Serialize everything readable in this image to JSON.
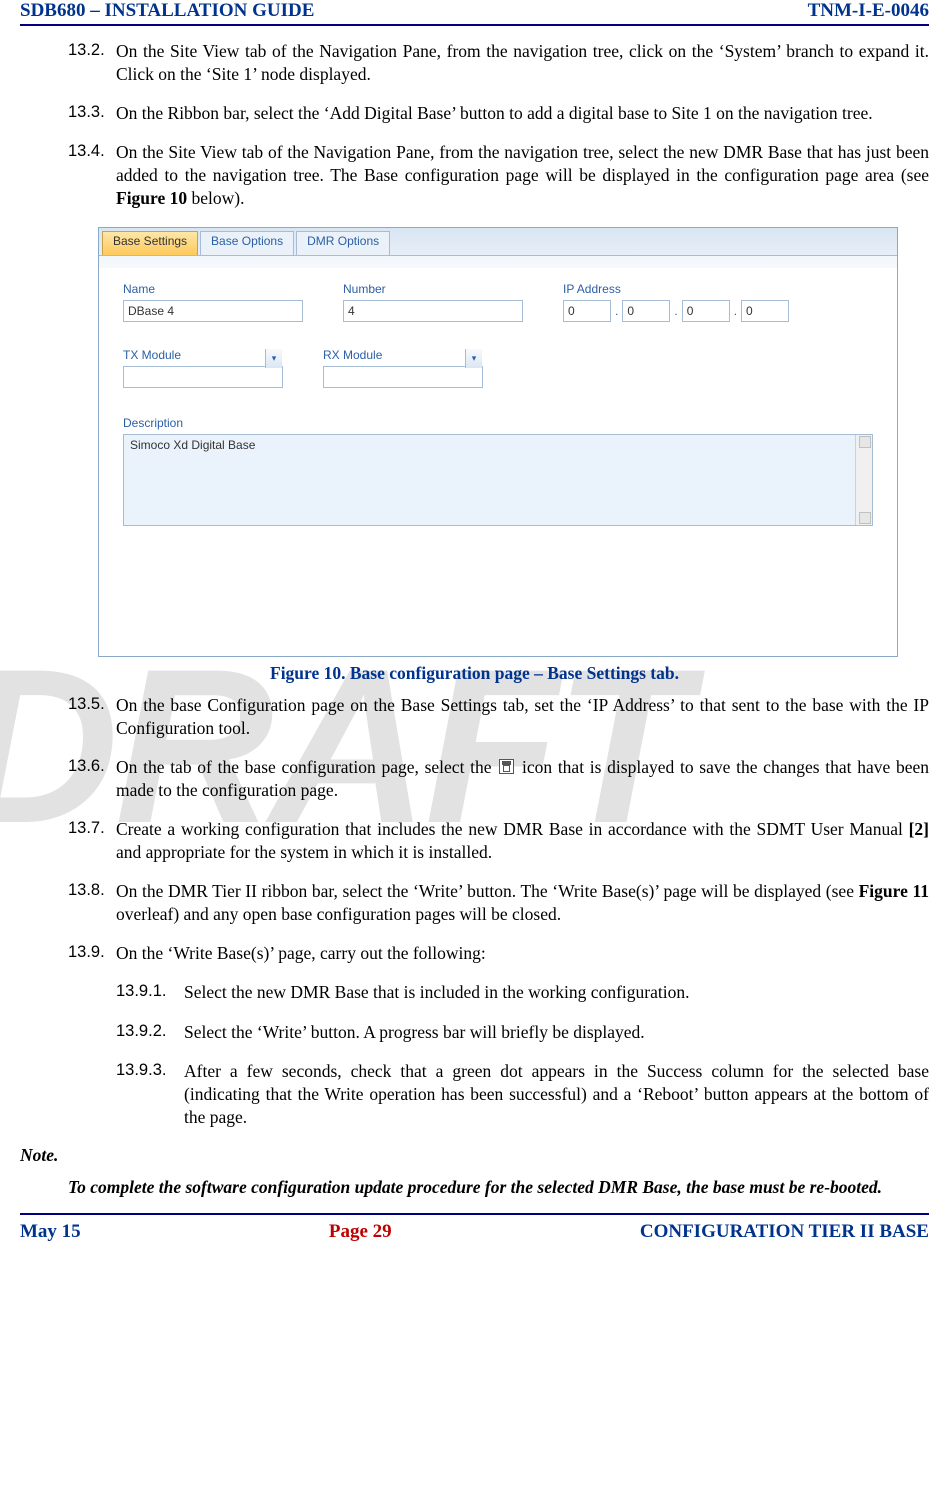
{
  "header": {
    "left": "SDB680 – INSTALLATION GUIDE",
    "right": "TNM-I-E-0046"
  },
  "footer": {
    "left": "May 15",
    "center": "Page 29",
    "right": "CONFIGURATION TIER II BASE"
  },
  "watermark": "DRAFT",
  "steps": {
    "s132": {
      "num": "13.2.",
      "text": "On the Site View tab of the Navigation Pane, from the navigation tree, click on the ‘System’ branch to expand it.  Click on the ‘Site 1’ node displayed."
    },
    "s133": {
      "num": "13.3.",
      "text": "On the Ribbon bar, select the ‘Add Digital Base’ button to add a digital base to Site 1 on the navigation tree."
    },
    "s134": {
      "num": "13.4.",
      "text_a": "On the Site View tab of the Navigation Pane, from the navigation tree, select the new DMR Base that has just been added to the navigation tree.  The Base configuration page will be displayed in the configuration page area (see ",
      "ref": "Figure 10",
      "text_b": " below)."
    },
    "s135": {
      "num": "13.5.",
      "text": "On the base Configuration page on the Base Settings tab, set the ‘IP Address’ to that sent to the base with the IP Configuration tool."
    },
    "s136": {
      "num": "13.6.",
      "text_a": "On the tab of the base configuration page, select the ",
      "text_b": " icon that is displayed to save the changes that have been made to the configuration page."
    },
    "s137": {
      "num": "13.7.",
      "text_a": "Create a working configuration that includes the new DMR Base in accordance with the SDMT User Manual ",
      "ref": "[2]",
      "text_b": " and appropriate for the system in which it is installed."
    },
    "s138": {
      "num": "13.8.",
      "text_a": "On the DMR Tier II ribbon bar, select the ‘Write’ button.  The ‘Write Base(s)’ page will be displayed (see ",
      "ref": "Figure 11",
      "text_b": " overleaf) and any open base configuration pages will be closed."
    },
    "s139": {
      "num": "13.9.",
      "text": "On the ‘Write Base(s)’ page, carry out the following:"
    }
  },
  "subs": {
    "s1391": {
      "num": "13.9.1.",
      "text": "Select the new DMR Base that is included in the working configuration."
    },
    "s1392": {
      "num": "13.9.2.",
      "text": "Select the ‘Write’ button.  A progress bar will briefly be displayed."
    },
    "s1393": {
      "num": "13.9.3.",
      "text": "After a few seconds, check that a green dot appears in the Success column for the selected base (indicating that the Write operation has been successful) and a ‘Reboot’ button appears at the bottom of the page."
    }
  },
  "note": {
    "head": "Note.",
    "body": "To complete the software configuration update procedure for the selected DMR Base, the base must be re-booted."
  },
  "figure": {
    "caption": "Figure 10.  Base configuration page – Base Settings tab.",
    "tabs": {
      "t1": "Base Settings",
      "t2": "Base Options",
      "t3": "DMR Options"
    },
    "labels": {
      "name": "Name",
      "number": "Number",
      "ip": "IP Address",
      "tx": "TX Module",
      "rx": "RX Module",
      "desc": "Description"
    },
    "values": {
      "name": "DBase 4",
      "number": "4",
      "ip1": "0",
      "ip2": "0",
      "ip3": "0",
      "ip4": "0",
      "desc": "Simoco Xd Digital Base"
    },
    "dot": "."
  }
}
